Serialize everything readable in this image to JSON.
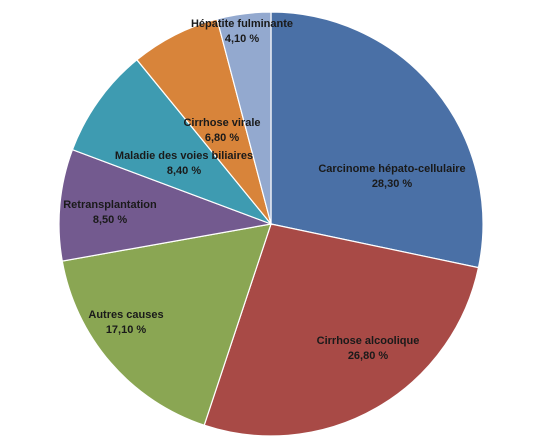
{
  "chart_data": {
    "type": "pie",
    "start_angle_deg": 0,
    "direction": "clockwise",
    "slices": [
      {
        "name": "Carcinome hépato-cellulaire",
        "value_label": "28,30 %",
        "value": 28.3,
        "color": "#4A70A6"
      },
      {
        "name": "Cirrhose alcoolique",
        "value_label": "26,80 %",
        "value": 26.8,
        "color": "#A84A46"
      },
      {
        "name": "Autres causes",
        "value_label": "17,10 %",
        "value": 17.1,
        "color": "#8AA653"
      },
      {
        "name": "Retransplantation",
        "value_label": "8,50 %",
        "value": 8.5,
        "color": "#735A8F"
      },
      {
        "name": "Maladie des voies biliaires",
        "value_label": "8,40 %",
        "value": 8.4,
        "color": "#3E9BB1"
      },
      {
        "name": "Cirrhose virale",
        "value_label": "6,80 %",
        "value": 6.8,
        "color": "#D8843A"
      },
      {
        "name": "Hépatite fulminante",
        "value_label": "4,10 %",
        "value": 4.1,
        "color": "#93A9CF"
      }
    ]
  }
}
